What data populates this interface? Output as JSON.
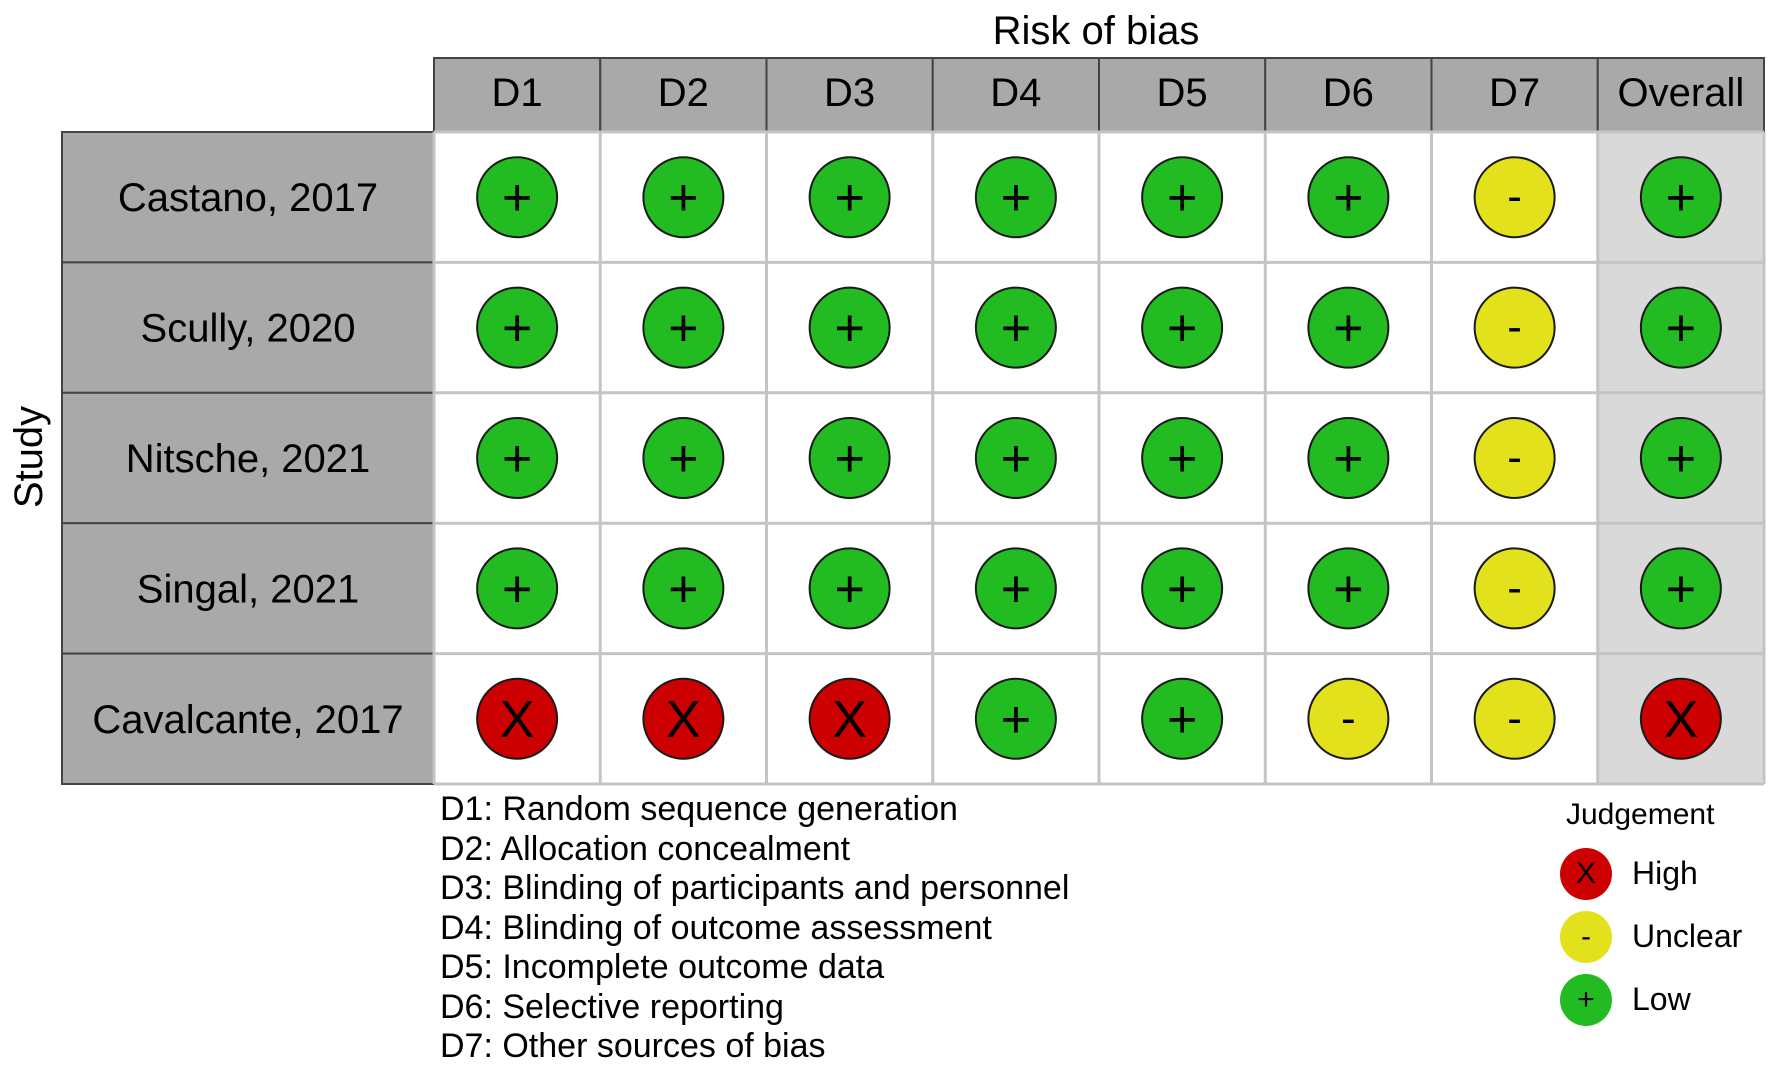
{
  "chart_data": {
    "type": "table",
    "title": "Risk of bias",
    "ylabel": "Study",
    "domains": [
      "D1",
      "D2",
      "D3",
      "D4",
      "D5",
      "D6",
      "D7",
      "Overall"
    ],
    "studies": [
      {
        "name": "Castano, 2017",
        "judgements": [
          "Low",
          "Low",
          "Low",
          "Low",
          "Low",
          "Low",
          "Unclear",
          "Low"
        ]
      },
      {
        "name": "Scully, 2020",
        "judgements": [
          "Low",
          "Low",
          "Low",
          "Low",
          "Low",
          "Low",
          "Unclear",
          "Low"
        ]
      },
      {
        "name": "Nitsche, 2021",
        "judgements": [
          "Low",
          "Low",
          "Low",
          "Low",
          "Low",
          "Low",
          "Unclear",
          "Low"
        ]
      },
      {
        "name": "Singal, 2021",
        "judgements": [
          "Low",
          "Low",
          "Low",
          "Low",
          "Low",
          "Low",
          "Unclear",
          "Low"
        ]
      },
      {
        "name": "Cavalcante, 2017",
        "judgements": [
          "High",
          "High",
          "High",
          "Low",
          "Low",
          "Unclear",
          "Unclear",
          "High"
        ]
      }
    ],
    "domain_definitions": [
      "D1: Random sequence generation",
      "D2: Allocation concealment",
      "D3: Blinding of participants and personnel",
      "D4: Blinding of outcome assessment",
      "D5: Incomplete outcome data",
      "D6: Selective reporting",
      "D7: Other sources of bias"
    ],
    "legend": {
      "title": "Judgement",
      "position": "bottom-right",
      "items": [
        {
          "label": "High",
          "symbol": "X",
          "color": "#cc0000"
        },
        {
          "label": "Unclear",
          "symbol": "-",
          "color": "#e3e01c"
        },
        {
          "label": "Low",
          "symbol": "+",
          "color": "#22bb22"
        }
      ]
    },
    "symbols": {
      "High": "X",
      "Unclear": "-",
      "Low": "+"
    },
    "colors": {
      "High": "#cc0000",
      "Unclear": "#e3e01c",
      "Low": "#22bb22",
      "header_fill": "#a9a9a9",
      "overall_column_fill": "#d9d9d9",
      "grid_line": "#c4c4c4"
    }
  }
}
